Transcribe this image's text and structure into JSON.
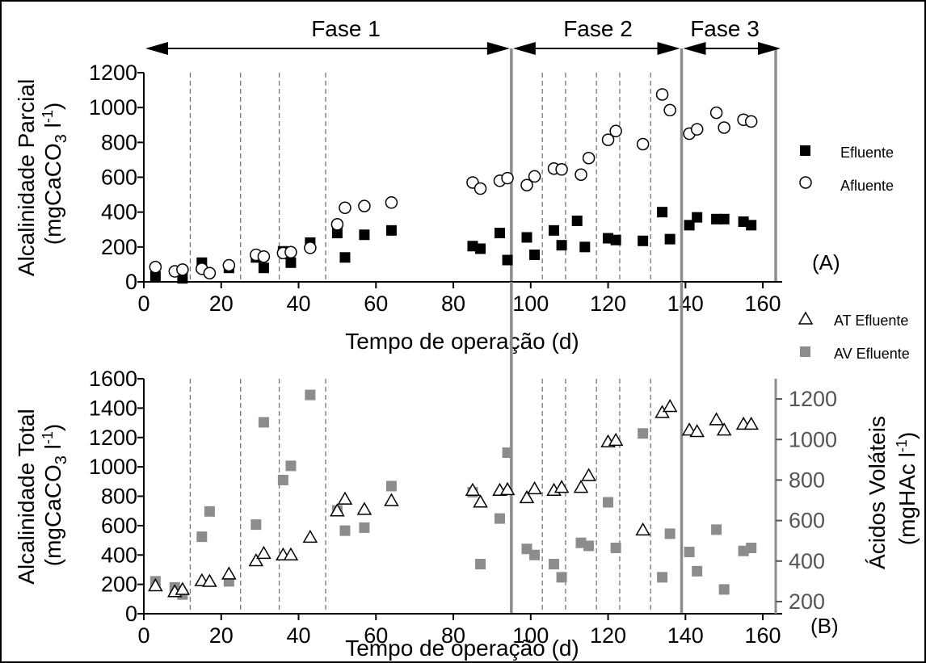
{
  "chart_data": [
    {
      "type": "scatter",
      "panel_label": "(A)",
      "xlabel": "Tempo de operação (d)",
      "ylabel_line1": "Alcalinidade Parcial",
      "ylabel_line2": "(mgCaCO3 l-1)",
      "xlim": [
        0,
        165
      ],
      "ylim": [
        0,
        1200
      ],
      "xticks": [
        0,
        20,
        40,
        60,
        80,
        100,
        120,
        140,
        160
      ],
      "yticks": [
        0,
        200,
        400,
        600,
        800,
        1000,
        1200
      ],
      "legend_position": "right",
      "phases": [
        {
          "label": "Fase 1",
          "start": 0,
          "end": 95
        },
        {
          "label": "Fase 2",
          "start": 95,
          "end": 139
        },
        {
          "label": "Fase 3",
          "start": 139,
          "end": 165
        }
      ],
      "phase_boundaries": [
        95,
        139
      ],
      "dashed_lines": [
        12,
        25,
        35,
        47,
        103,
        109,
        117,
        123,
        131
      ],
      "series": [
        {
          "name": "Efluente",
          "marker": "filled-square",
          "color": "#000000",
          "x": [
            3,
            10,
            15,
            22,
            29,
            31,
            36,
            38,
            43,
            50,
            52,
            57,
            64,
            85,
            87,
            92,
            94,
            99,
            101,
            106,
            108,
            112,
            114,
            120,
            122,
            129,
            134,
            136,
            141,
            143,
            148,
            150,
            155,
            157
          ],
          "y": [
            30,
            20,
            110,
            80,
            140,
            80,
            175,
            110,
            225,
            280,
            140,
            270,
            295,
            205,
            190,
            280,
            125,
            255,
            155,
            295,
            210,
            350,
            200,
            250,
            240,
            235,
            400,
            245,
            325,
            370,
            360,
            360,
            345,
            325
          ]
        },
        {
          "name": "Afluente",
          "marker": "open-circle",
          "color": "#000000",
          "x": [
            3,
            8,
            10,
            15,
            17,
            22,
            29,
            31,
            36,
            38,
            43,
            50,
            52,
            57,
            64,
            85,
            87,
            92,
            94,
            99,
            101,
            106,
            108,
            113,
            115,
            120,
            122,
            129,
            134,
            136,
            141,
            143,
            148,
            150,
            155,
            157
          ],
          "y": [
            85,
            60,
            70,
            75,
            50,
            95,
            155,
            145,
            165,
            170,
            195,
            330,
            425,
            435,
            455,
            570,
            535,
            580,
            595,
            555,
            605,
            650,
            645,
            615,
            710,
            815,
            865,
            790,
            1075,
            985,
            850,
            875,
            970,
            885,
            930,
            920
          ]
        }
      ]
    },
    {
      "type": "scatter",
      "panel_label": "(B)",
      "xlabel": "Tempo de operação (d)",
      "ylabel_line1": "Alcalinidade Total",
      "ylabel_line2": "(mgCaCO3 l-1)",
      "y2label_line1": "Ácidos Voláteis",
      "y2label_line2": "(mgHAc l-1)",
      "xlim": [
        0,
        165
      ],
      "ylim": [
        0,
        1600
      ],
      "y2lim": [
        140,
        1300
      ],
      "xticks": [
        0,
        20,
        40,
        60,
        80,
        100,
        120,
        140,
        160
      ],
      "yticks": [
        0,
        200,
        400,
        600,
        800,
        1000,
        1200,
        1400,
        1600
      ],
      "y2ticks": [
        200,
        400,
        600,
        800,
        1000,
        1200
      ],
      "legend_position": "right",
      "phase_boundaries": [
        95,
        139
      ],
      "dashed_lines": [
        12,
        25,
        35,
        47,
        103,
        109,
        117,
        123,
        131
      ],
      "series": [
        {
          "name": "AT Efluente",
          "marker": "open-triangle",
          "color": "#000000",
          "axis": "left",
          "x": [
            3,
            8,
            10,
            15,
            17,
            22,
            29,
            31,
            36,
            38,
            43,
            50,
            52,
            57,
            64,
            85,
            87,
            92,
            94,
            99,
            101,
            106,
            108,
            113,
            115,
            120,
            122,
            129,
            134,
            136,
            141,
            143,
            148,
            150,
            155,
            157
          ],
          "y": [
            190,
            150,
            165,
            225,
            220,
            270,
            360,
            410,
            400,
            400,
            520,
            700,
            780,
            710,
            770,
            840,
            760,
            840,
            845,
            790,
            850,
            840,
            860,
            860,
            940,
            1170,
            1180,
            570,
            1370,
            1410,
            1250,
            1240,
            1320,
            1250,
            1290,
            1290
          ]
        },
        {
          "name": "AV Efluente",
          "marker": "filled-square",
          "color": "#8c8c8c",
          "axis": "right",
          "x": [
            3,
            8,
            10,
            15,
            17,
            22,
            29,
            31,
            36,
            38,
            43,
            50,
            52,
            57,
            64,
            85,
            87,
            92,
            94,
            99,
            101,
            106,
            108,
            113,
            115,
            120,
            122,
            129,
            134,
            136,
            141,
            143,
            148,
            150,
            155,
            157
          ],
          "y": [
            300,
            270,
            235,
            520,
            645,
            300,
            580,
            1085,
            800,
            870,
            1220,
            650,
            550,
            565,
            770,
            740,
            385,
            610,
            935,
            460,
            430,
            385,
            320,
            490,
            475,
            690,
            465,
            1030,
            320,
            535,
            445,
            350,
            555,
            260,
            450,
            465
          ]
        }
      ]
    }
  ]
}
